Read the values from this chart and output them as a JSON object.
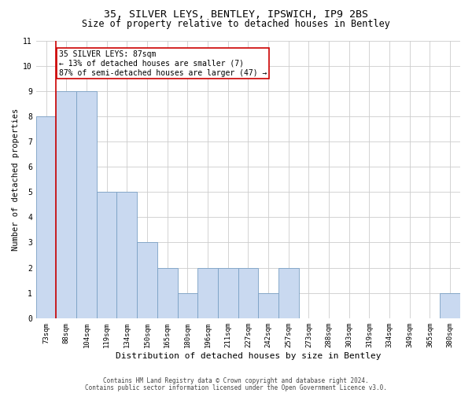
{
  "title1": "35, SILVER LEYS, BENTLEY, IPSWICH, IP9 2BS",
  "title2": "Size of property relative to detached houses in Bentley",
  "xlabel": "Distribution of detached houses by size in Bentley",
  "ylabel": "Number of detached properties",
  "categories": [
    "73sqm",
    "88sqm",
    "104sqm",
    "119sqm",
    "134sqm",
    "150sqm",
    "165sqm",
    "180sqm",
    "196sqm",
    "211sqm",
    "227sqm",
    "242sqm",
    "257sqm",
    "273sqm",
    "288sqm",
    "303sqm",
    "319sqm",
    "334sqm",
    "349sqm",
    "365sqm",
    "380sqm"
  ],
  "values": [
    8,
    9,
    9,
    5,
    5,
    3,
    2,
    1,
    2,
    2,
    2,
    1,
    2,
    0,
    0,
    0,
    0,
    0,
    0,
    0,
    1
  ],
  "bar_color": "#c9d9f0",
  "bar_edge_color": "#7aa0c4",
  "annotation_line1": "35 SILVER LEYS: 87sqm",
  "annotation_line2": "← 13% of detached houses are smaller (7)",
  "annotation_line3": "87% of semi-detached houses are larger (47) →",
  "annotation_box_color": "#ffffff",
  "annotation_box_edge": "#cc0000",
  "red_line_color": "#cc0000",
  "ylim": [
    0,
    11
  ],
  "yticks": [
    0,
    1,
    2,
    3,
    4,
    5,
    6,
    7,
    8,
    9,
    10,
    11
  ],
  "footer1": "Contains HM Land Registry data © Crown copyright and database right 2024.",
  "footer2": "Contains public sector information licensed under the Open Government Licence v3.0.",
  "bg_color": "#ffffff",
  "grid_color": "#cccccc",
  "title1_fontsize": 9.5,
  "title2_fontsize": 8.5,
  "xlabel_fontsize": 8,
  "ylabel_fontsize": 7.5,
  "tick_fontsize": 6.5,
  "annotation_fontsize": 7,
  "footer_fontsize": 5.5
}
